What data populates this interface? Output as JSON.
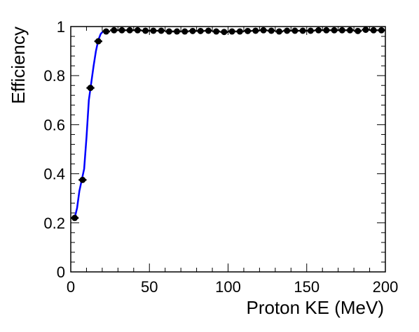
{
  "chart_data": {
    "type": "scatter",
    "title": "",
    "xlabel": "Proton KE (MeV)",
    "ylabel": "Efficiency",
    "xlim": [
      0,
      200
    ],
    "ylim": [
      0,
      1
    ],
    "x_ticks": [
      0,
      50,
      100,
      150,
      200
    ],
    "x_tick_labels": [
      "0",
      "50",
      "100",
      "150",
      "200"
    ],
    "y_ticks": [
      0,
      0.2,
      0.4,
      0.6,
      0.8,
      1
    ],
    "y_tick_labels": [
      "0",
      "0.2",
      "0.4",
      "0.6",
      "0.8",
      "1"
    ],
    "grid": false,
    "legend": "none",
    "series": [
      {
        "kind": "points_with_x_error",
        "color": "#000000",
        "x_error": 2.5,
        "x": [
          2.5,
          7.5,
          12.5,
          17.5,
          22.5,
          27.5,
          32.5,
          37.5,
          42.5,
          47.5,
          52.5,
          57.5,
          62.5,
          67.5,
          72.5,
          77.5,
          82.5,
          87.5,
          92.5,
          97.5,
          102.5,
          107.5,
          112.5,
          117.5,
          122.5,
          127.5,
          132.5,
          137.5,
          142.5,
          147.5,
          152.5,
          157.5,
          162.5,
          167.5,
          172.5,
          177.5,
          182.5,
          187.5,
          192.5,
          197.5
        ],
        "y": [
          0.22,
          0.375,
          0.75,
          0.94,
          0.98,
          0.985,
          0.985,
          0.985,
          0.985,
          0.983,
          0.983,
          0.983,
          0.98,
          0.98,
          0.98,
          0.982,
          0.982,
          0.983,
          0.98,
          0.978,
          0.98,
          0.98,
          0.982,
          0.983,
          0.985,
          0.983,
          0.98,
          0.983,
          0.983,
          0.983,
          0.983,
          0.985,
          0.985,
          0.985,
          0.985,
          0.985,
          0.982,
          0.987,
          0.985,
          0.985
        ]
      },
      {
        "kind": "curve",
        "color": "#0000ff",
        "x": [
          2.5,
          4,
          5.5,
          7,
          8.5,
          10,
          11.5,
          13,
          14.5,
          16,
          17.5,
          19,
          20.5,
          22
        ],
        "y": [
          0.22,
          0.26,
          0.33,
          0.375,
          0.42,
          0.55,
          0.7,
          0.77,
          0.84,
          0.9,
          0.945,
          0.97,
          0.98,
          0.985
        ]
      }
    ]
  }
}
